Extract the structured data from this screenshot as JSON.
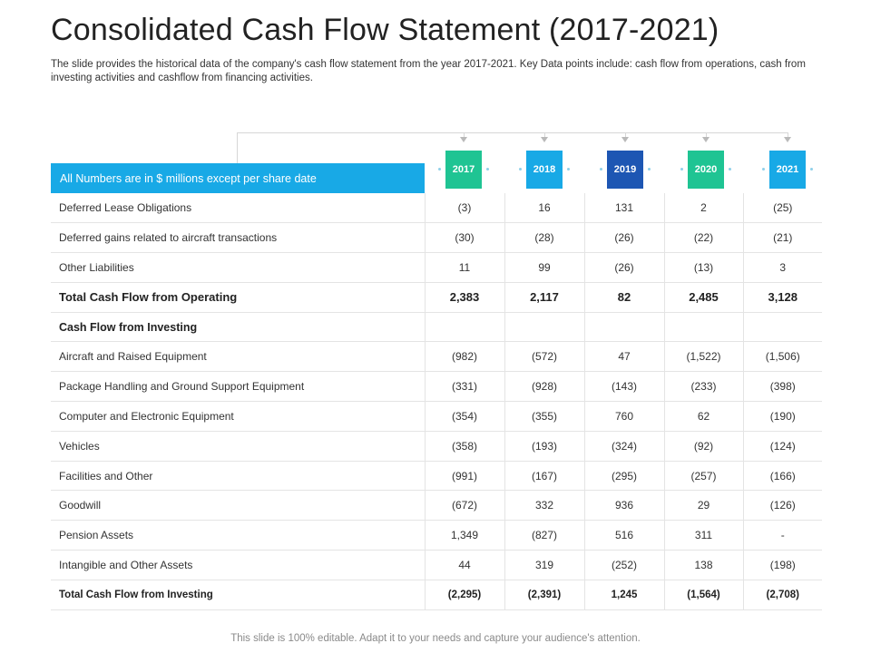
{
  "title": "Consolidated Cash Flow Statement (2017-2021)",
  "subtitle": "The slide provides  the historical data of the company's cash flow  statement from the year 2017-2021.  Key Data points include: cash flow from operations,  cash from investing  activities  and cashflow  from financing  activities.",
  "header_note": "All Numbers are in $ millions except per share date",
  "years": [
    {
      "label": "2017",
      "color": "#1fc493"
    },
    {
      "label": "2018",
      "color": "#18a9e6"
    },
    {
      "label": "2019",
      "color": "#1d56b3"
    },
    {
      "label": "2020",
      "color": "#1fc493"
    },
    {
      "label": "2021",
      "color": "#18a9e6"
    }
  ],
  "rows": [
    {
      "label": "Deferred  Lease Obligations",
      "values": [
        "(3)",
        "16",
        "131",
        "2",
        "(25)"
      ]
    },
    {
      "label": "Deferred  gains related to aircraft  transactions",
      "values": [
        "(30)",
        "(28)",
        "(26)",
        "(22)",
        "(21)"
      ]
    },
    {
      "label": "Other Liabilities",
      "values": [
        "11",
        "99",
        "(26)",
        "(13)",
        "3"
      ]
    },
    {
      "label": "Total  Cash Flow from Operating",
      "values": [
        "2,383",
        "2,117",
        "82",
        "2,485",
        "3,128"
      ]
    },
    {
      "label": "Cash Flow from Investing",
      "values": [
        "",
        "",
        "",
        "",
        ""
      ]
    },
    {
      "label": "Aircraft  and Raised Equipment",
      "values": [
        "(982)",
        "(572)",
        "47",
        "(1,522)",
        "(1,506)"
      ]
    },
    {
      "label": "Package Handling  and Ground  Support  Equipment",
      "values": [
        "(331)",
        "(928)",
        "(143)",
        "(233)",
        "(398)"
      ]
    },
    {
      "label": "Computer  and Electronic Equipment",
      "values": [
        "(354)",
        "(355)",
        "760",
        "62",
        "(190)"
      ]
    },
    {
      "label": "Vehicles",
      "values": [
        "(358)",
        "(193)",
        "(324)",
        "(92)",
        "(124)"
      ]
    },
    {
      "label": "Facilities and Other",
      "values": [
        "(991)",
        "(167)",
        "(295)",
        "(257)",
        "(166)"
      ]
    },
    {
      "label": "Goodwill",
      "values": [
        "(672)",
        "332",
        "936",
        "29",
        "(126)"
      ]
    },
    {
      "label": "Pension Assets",
      "values": [
        "1,349",
        "(827)",
        "516",
        "311",
        "-"
      ]
    },
    {
      "label": "Intangible  and Other Assets",
      "values": [
        "44",
        "319",
        "(252)",
        "138",
        "(198)"
      ]
    },
    {
      "label": "Total Cash Flow  from Investing",
      "values": [
        "(2,295)",
        "(2,391)",
        "1,245",
        "(1,564)",
        "(2,708)"
      ]
    }
  ],
  "footer": "This slide is 100%  editable.  Adapt it to your needs and capture your audience's attention."
}
